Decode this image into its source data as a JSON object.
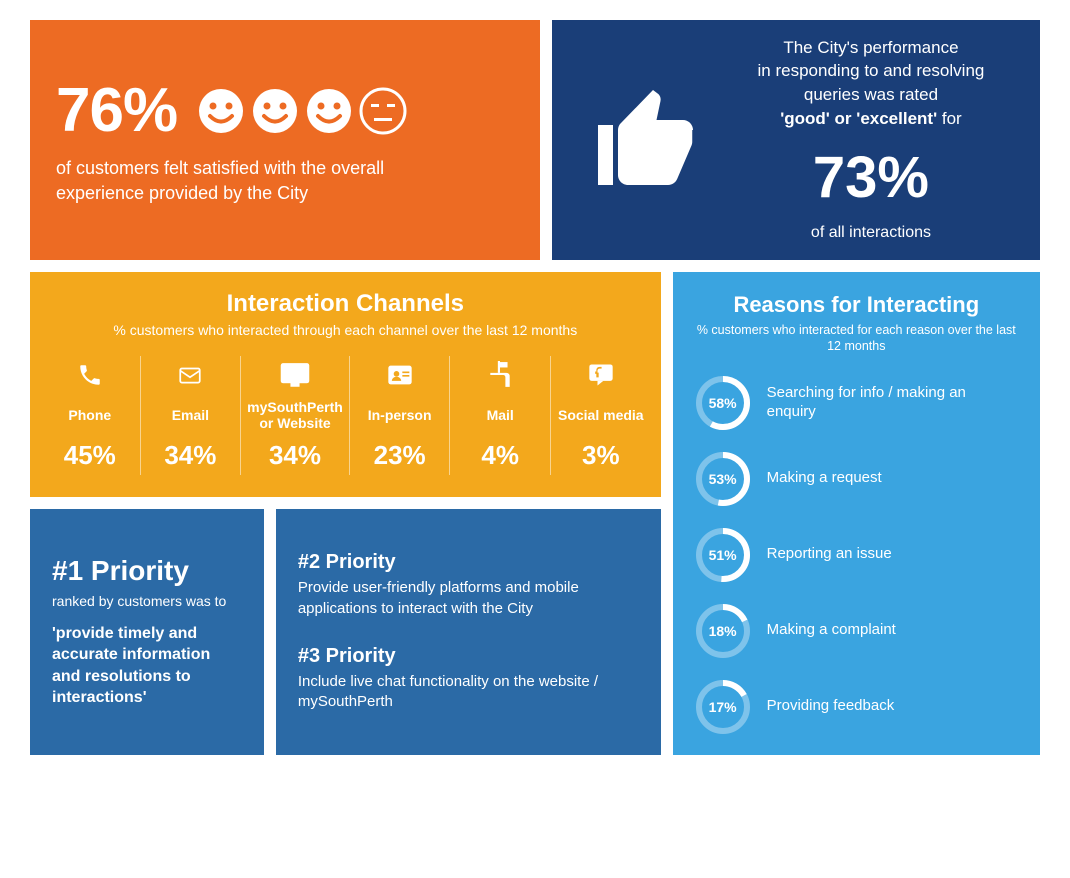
{
  "colors": {
    "orange": "#ed6b23",
    "navy": "#1a3e78",
    "amber": "#f3a81c",
    "steel": "#2b6aa6",
    "sky": "#3aa4e0",
    "white": "#ffffff",
    "donut_track": "rgba(255,255,255,0.35)"
  },
  "satisfaction": {
    "percent": "76%",
    "text": "of customers felt satisfied with the overall experience provided by the City",
    "happy_faces": 3,
    "neutral_faces": 1
  },
  "performance": {
    "line1": "The City's performance",
    "line2": "in responding to and resolving",
    "line3": "queries was rated",
    "line4_strong": "'good' or 'excellent'",
    "line4_tail": " for",
    "percent": "73%",
    "sub": "of all interactions"
  },
  "channels": {
    "title": "Interaction Channels",
    "subtitle": "% customers who interacted through each channel over the last 12 months",
    "items": [
      {
        "icon": "phone",
        "label": "Phone",
        "value": "45%"
      },
      {
        "icon": "email",
        "label": "Email",
        "value": "34%"
      },
      {
        "icon": "web",
        "label": "mySouthPerth or Website",
        "value": "34%"
      },
      {
        "icon": "person",
        "label": "In-person",
        "value": "23%"
      },
      {
        "icon": "mail",
        "label": "Mail",
        "value": "4%"
      },
      {
        "icon": "social",
        "label": "Social media",
        "value": "3%"
      }
    ]
  },
  "priority1": {
    "heading": "#1 Priority",
    "lead": "ranked by customers was to",
    "quote": "'provide timely and accurate information and resolutions to interactions'"
  },
  "priority2": {
    "heading": "#2 Priority",
    "text": "Provide user-friendly platforms and mobile applications to interact with the City"
  },
  "priority3": {
    "heading": "#3 Priority",
    "text": "Include live chat functionality on the website / mySouthPerth"
  },
  "reasons": {
    "title": "Reasons for Interacting",
    "subtitle": "% customers who interacted for each reason over the last 12 months",
    "items": [
      {
        "pct": 58,
        "label": "Searching for info / making an enquiry"
      },
      {
        "pct": 53,
        "label": "Making a request"
      },
      {
        "pct": 51,
        "label": "Reporting an issue"
      },
      {
        "pct": 18,
        "label": "Making a complaint"
      },
      {
        "pct": 17,
        "label": "Providing feedback"
      }
    ]
  }
}
